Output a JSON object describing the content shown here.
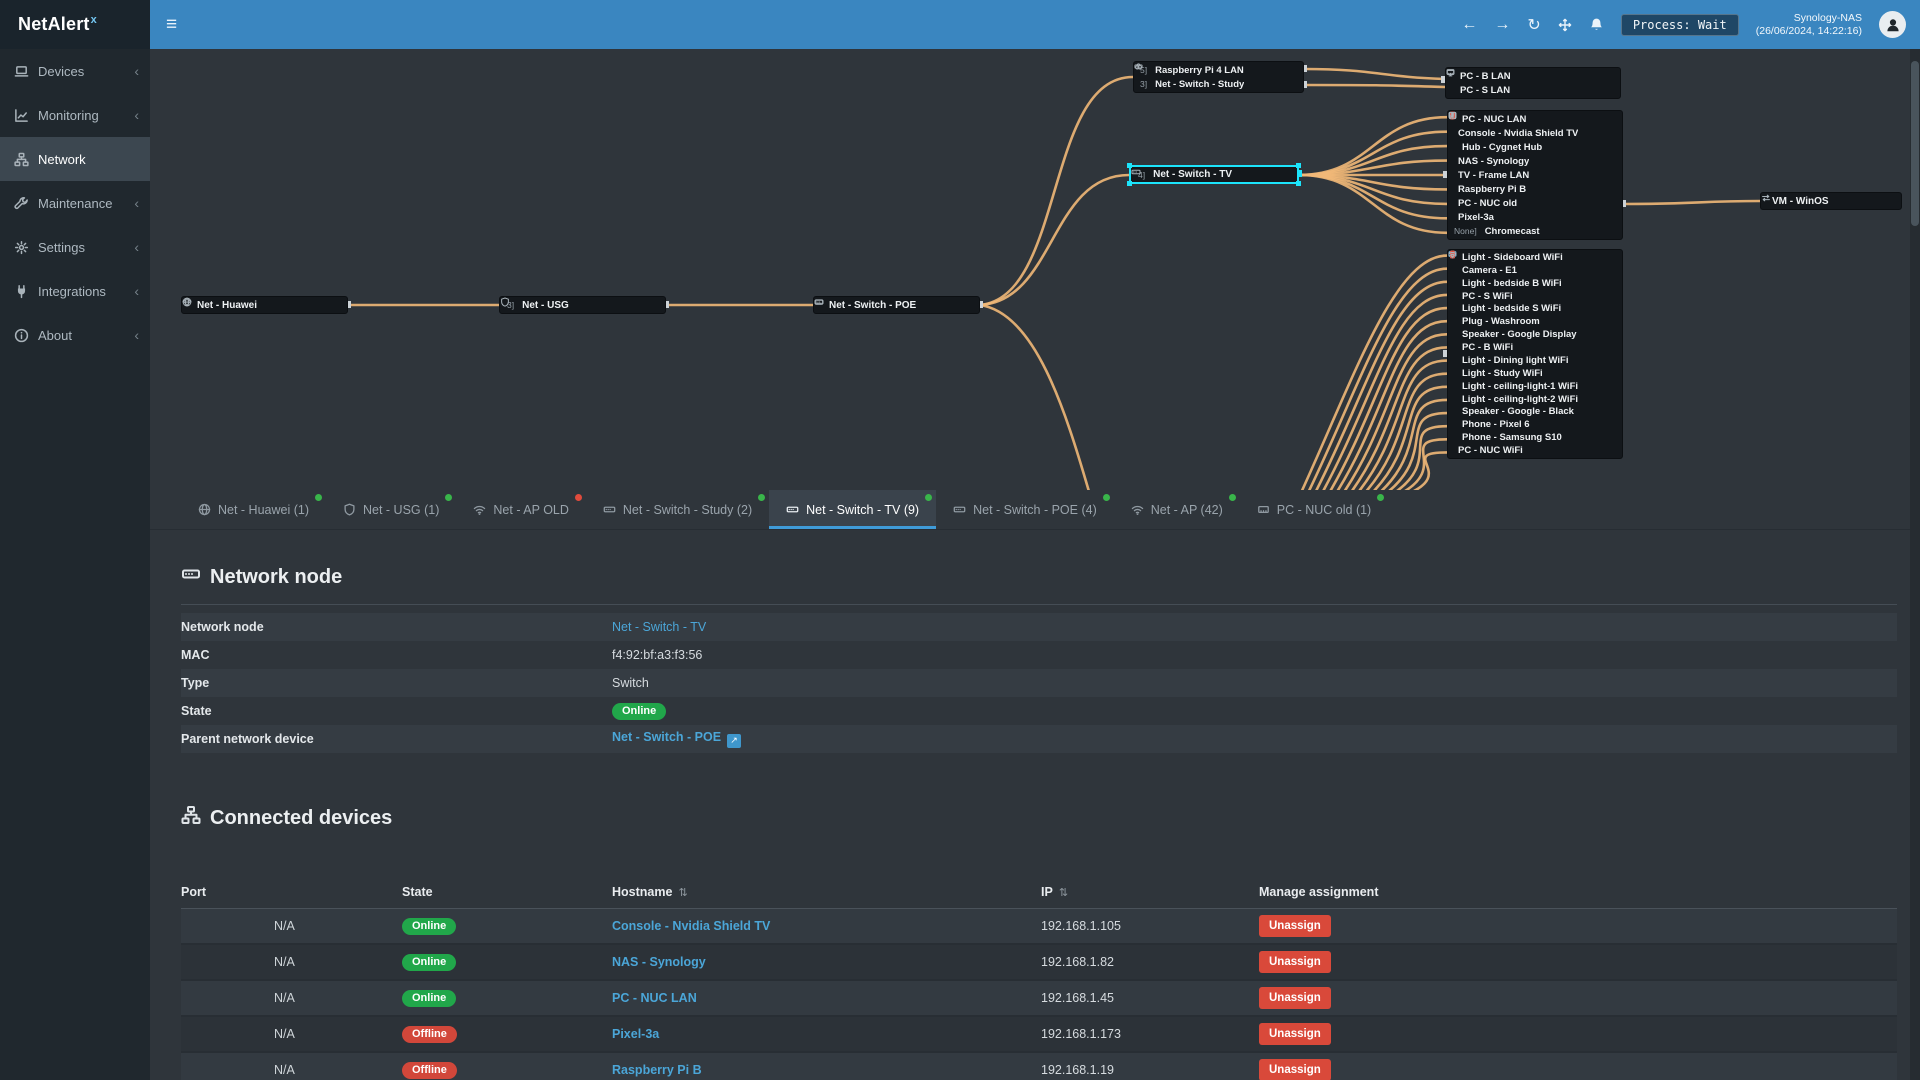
{
  "colors": {
    "accent": "#3a86c0",
    "online": "#21a74a",
    "offline": "#d2473a",
    "link": "#4ba6d8",
    "edge": "#f1b878",
    "selection": "#1ce4fb",
    "dot_green": "#39b54a",
    "dot_red": "#e04b3c"
  },
  "topbar": {
    "brand": "NetAlert",
    "brand_sup": "x",
    "hamburger": "≡",
    "nav_back": "←",
    "nav_forward": "→",
    "nav_refresh": "↻",
    "process_badge": "Process: Wait",
    "host_name": "Synology-NAS",
    "host_time": "(26/06/2024, 14:22:16)"
  },
  "sidebar": {
    "items": [
      {
        "label": "Devices",
        "icon": "laptop",
        "chevron": "‹",
        "active": false
      },
      {
        "label": "Monitoring",
        "icon": "chart",
        "chevron": "‹",
        "active": false
      },
      {
        "label": "Network",
        "icon": "sitemap",
        "chevron": "",
        "active": true
      },
      {
        "label": "Maintenance",
        "icon": "wrench",
        "chevron": "‹",
        "active": false
      },
      {
        "label": "Settings",
        "icon": "gear",
        "chevron": "‹",
        "active": false
      },
      {
        "label": "Integrations",
        "icon": "plug",
        "chevron": "‹",
        "active": false
      },
      {
        "label": "About",
        "icon": "info",
        "chevron": "‹",
        "active": false
      }
    ]
  },
  "diagram": {
    "nodes": [
      {
        "id": "huawei",
        "prefix": "",
        "icons": [
          {
            "name": "wifi"
          },
          {
            "name": "globe"
          }
        ],
        "label": "Net - Huawei",
        "selected": false
      },
      {
        "id": "usg",
        "prefix": "3]",
        "icons": [
          {
            "name": "shield"
          }
        ],
        "label": "Net - USG",
        "selected": false
      },
      {
        "id": "poe",
        "prefix": "",
        "icons": [
          {
            "name": "ethernet"
          },
          {
            "name": "switch"
          }
        ],
        "label": "Net - Switch - POE",
        "selected": false
      },
      {
        "id": "tv",
        "prefix": "4]",
        "icons": [
          {
            "name": "switch"
          }
        ],
        "label": "Net - Switch - TV",
        "selected": true
      },
      {
        "id": "vm",
        "prefix": "",
        "icons": [
          {
            "name": "arrows"
          }
        ],
        "label": "VM - WinOS",
        "selected": false
      }
    ],
    "groups": [
      {
        "id": "study",
        "rows": [
          {
            "prefix": "5]",
            "icons": [
              {
                "name": "raspberry"
              }
            ],
            "label": "Raspberry Pi 4 LAN"
          },
          {
            "prefix": "3]",
            "icons": [
              {
                "name": "switch"
              }
            ],
            "label": "Net - Switch - Study"
          }
        ]
      },
      {
        "id": "pcs",
        "rows": [
          {
            "prefix": "",
            "icons": [
              {
                "name": "monitor"
              },
              {
                "name": "ethernet"
              }
            ],
            "label": "PC - B LAN"
          },
          {
            "prefix": "",
            "icons": [
              {
                "name": "monitor"
              },
              {
                "name": "ethernet"
              }
            ],
            "label": "PC - S LAN"
          }
        ]
      },
      {
        "id": "tvg",
        "rows": [
          {
            "prefix": "",
            "icons": [
              {
                "name": "ethernet"
              },
              {
                "name": "monitor"
              }
            ],
            "label": "PC - NUC LAN"
          },
          {
            "prefix": "",
            "icons": [
              {
                "name": "gamepad"
              }
            ],
            "label": "Console - Nvidia Shield TV"
          },
          {
            "prefix": "",
            "icons": [
              {
                "name": "minus",
                "color": "#e74c3c"
              },
              {
                "name": "hub"
              }
            ],
            "label": "Hub - Cygnet Hub"
          },
          {
            "prefix": "",
            "icons": [
              {
                "name": "nas"
              }
            ],
            "label": "NAS - Synology"
          },
          {
            "prefix": "",
            "icons": [
              {
                "name": "tv"
              }
            ],
            "label": "TV - Frame LAN"
          },
          {
            "prefix": "",
            "icons": [
              {
                "name": "raspberry"
              }
            ],
            "label": "Raspberry Pi B"
          },
          {
            "prefix": "",
            "icons": [
              {
                "name": "ethernet"
              }
            ],
            "label": "PC - NUC old"
          },
          {
            "prefix": "",
            "icons": [
              {
                "name": "phone",
                "color": "#e74c3c"
              }
            ],
            "label": "Pixel-3a"
          },
          {
            "prefix": "None]",
            "icons": [
              {
                "name": "cast"
              }
            ],
            "label": "Chromecast"
          }
        ]
      },
      {
        "id": "wifi",
        "rows": [
          {
            "prefix": "",
            "icons": [
              {
                "name": "wifi"
              },
              {
                "name": "bulb",
                "color": "#f5c242"
              }
            ],
            "label": "Light - Sideboard WiFi"
          },
          {
            "prefix": "",
            "icons": [
              {
                "name": "wifi"
              },
              {
                "name": "camera"
              }
            ],
            "label": "Camera - E1"
          },
          {
            "prefix": "",
            "icons": [
              {
                "name": "wifi"
              },
              {
                "name": "bulb",
                "color": "#e15241"
              }
            ],
            "label": "Light - bedside B WiFi"
          },
          {
            "prefix": "",
            "icons": [
              {
                "name": "wifi"
              },
              {
                "name": "monitor",
                "color": "#7fb3d5"
              }
            ],
            "label": "PC - S WiFi"
          },
          {
            "prefix": "",
            "icons": [
              {
                "name": "wifi"
              },
              {
                "name": "bulb",
                "color": "#e15241"
              }
            ],
            "label": "Light - bedside S WiFi"
          },
          {
            "prefix": "",
            "icons": [
              {
                "name": "wifi"
              },
              {
                "name": "plug"
              }
            ],
            "label": "Plug - Washroom"
          },
          {
            "prefix": "",
            "icons": [
              {
                "name": "wifi"
              },
              {
                "name": "speaker"
              }
            ],
            "label": "Speaker - Google Display"
          },
          {
            "prefix": "",
            "icons": [
              {
                "name": "wifi"
              },
              {
                "name": "monitor",
                "color": "#7fb3d5"
              }
            ],
            "label": "PC - B WiFi"
          },
          {
            "prefix": "",
            "icons": [
              {
                "name": "wifi"
              },
              {
                "name": "bulb",
                "color": "#f5c242"
              }
            ],
            "label": "Light - Dining light WiFi"
          },
          {
            "prefix": "",
            "icons": [
              {
                "name": "wifi"
              },
              {
                "name": "bulb",
                "color": "#f5c242"
              }
            ],
            "label": "Light - Study WiFi"
          },
          {
            "prefix": "",
            "icons": [
              {
                "name": "wifi"
              },
              {
                "name": "bulb",
                "color": "#e15241"
              }
            ],
            "label": "Light - ceiling-light-1 WiFi"
          },
          {
            "prefix": "",
            "icons": [
              {
                "name": "wifi"
              },
              {
                "name": "bulb",
                "color": "#e15241"
              }
            ],
            "label": "Light - ceiling-light-2 WiFi"
          },
          {
            "prefix": "",
            "icons": [
              {
                "name": "wifi"
              },
              {
                "name": "speaker"
              }
            ],
            "label": "Speaker - Google - Black"
          },
          {
            "prefix": "",
            "icons": [
              {
                "name": "wifi"
              },
              {
                "name": "phone"
              }
            ],
            "label": "Phone - Pixel 6"
          },
          {
            "prefix": "",
            "icons": [
              {
                "name": "wifi"
              },
              {
                "name": "phone",
                "color": "#e74c3c"
              }
            ],
            "label": "Phone - Samsung S10"
          },
          {
            "prefix": "",
            "icons": [
              {
                "name": "wifi"
              }
            ],
            "label": "PC - NUC WiFi"
          }
        ]
      }
    ]
  },
  "tabs": [
    {
      "label": "Net - Huawei (1)",
      "icon": "globe",
      "dot": "#39b54a",
      "active": false
    },
    {
      "label": "Net - USG (1)",
      "icon": "shield",
      "dot": "#39b54a",
      "active": false
    },
    {
      "label": "Net - AP OLD",
      "icon": "wifi",
      "dot": "#e04b3c",
      "active": false
    },
    {
      "label": "Net - Switch - Study (2)",
      "icon": "switch",
      "dot": "#39b54a",
      "active": false
    },
    {
      "label": "Net - Switch - TV (9)",
      "icon": "switch",
      "dot": "#39b54a",
      "active": true
    },
    {
      "label": "Net - Switch - POE (4)",
      "icon": "switch",
      "dot": "#39b54a",
      "active": false
    },
    {
      "label": "Net - AP (42)",
      "icon": "wifi",
      "dot": "#39b54a",
      "active": false
    },
    {
      "label": "PC - NUC old (1)",
      "icon": "ethernet",
      "dot": "#39b54a",
      "active": false
    }
  ],
  "node_details": {
    "section_title": "Network node",
    "rows": [
      {
        "label": "Network node",
        "value": "Net - Switch - TV",
        "type": "link"
      },
      {
        "label": "MAC",
        "value": "f4:92:bf:a3:f3:56",
        "type": "text"
      },
      {
        "label": "Type",
        "value": "Switch",
        "type": "text"
      },
      {
        "label": "State",
        "value": "Online",
        "type": "badge"
      },
      {
        "label": "Parent network device",
        "value": "Net - Switch - POE",
        "type": "link-ext"
      }
    ]
  },
  "connected": {
    "section_title": "Connected devices",
    "columns": [
      "Port",
      "State",
      "Hostname",
      "IP",
      "Manage assignment"
    ],
    "unassign_label": "Unassign",
    "rows": [
      {
        "port": "N/A",
        "state": "Online",
        "hostname": "Console - Nvidia Shield TV",
        "ip": "192.168.1.105"
      },
      {
        "port": "N/A",
        "state": "Online",
        "hostname": "NAS - Synology",
        "ip": "192.168.1.82"
      },
      {
        "port": "N/A",
        "state": "Online",
        "hostname": "PC - NUC LAN",
        "ip": "192.168.1.45"
      },
      {
        "port": "N/A",
        "state": "Offline",
        "hostname": "Pixel-3a",
        "ip": "192.168.1.173"
      },
      {
        "port": "N/A",
        "state": "Offline",
        "hostname": "Raspberry Pi B",
        "ip": "192.168.1.19"
      }
    ]
  }
}
